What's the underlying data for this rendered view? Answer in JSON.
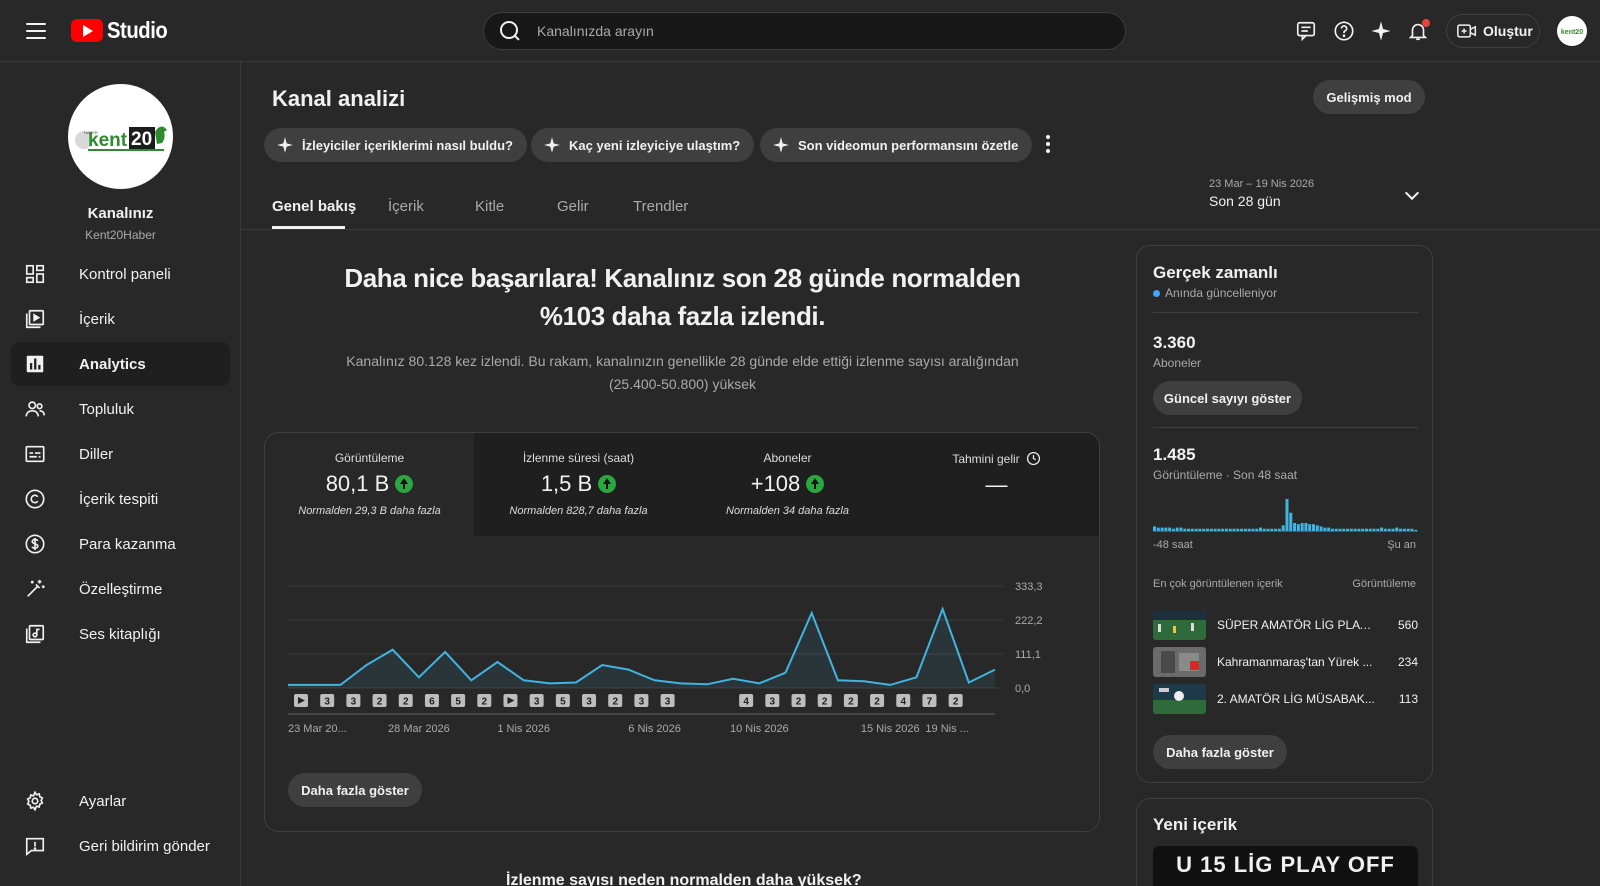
{
  "header": {
    "logo_text": "Studio",
    "search_placeholder": "Kanalınızda arayın",
    "create_label": "Oluştur"
  },
  "sidebar": {
    "channel_name": "Kanalınız",
    "channel_handle": "Kent20Haber",
    "channel_logo_text": "kent20",
    "items": [
      {
        "label": "Kontrol paneli",
        "icon": "dashboard-icon"
      },
      {
        "label": "İçerik",
        "icon": "content-icon"
      },
      {
        "label": "Analytics",
        "icon": "analytics-icon",
        "active": true
      },
      {
        "label": "Topluluk",
        "icon": "community-icon"
      },
      {
        "label": "Diller",
        "icon": "subtitles-icon"
      },
      {
        "label": "İçerik tespiti",
        "icon": "copyright-icon"
      },
      {
        "label": "Para kazanma",
        "icon": "dollar-icon"
      },
      {
        "label": "Özelleştirme",
        "icon": "magic-wand-icon"
      },
      {
        "label": "Ses kitaplığı",
        "icon": "audio-library-icon"
      }
    ],
    "bottom_items": [
      {
        "label": "Ayarlar",
        "icon": "gear-icon"
      },
      {
        "label": "Geri bildirim gönder",
        "icon": "feedback-icon"
      }
    ]
  },
  "main": {
    "title": "Kanal analizi",
    "advanced_mode": "Gelişmiş mod",
    "chips": [
      "İzleyiciler içeriklerimi nasıl buldu?",
      "Kaç yeni izleyiciye ulaştım?",
      "Son videomun performansını özetle"
    ],
    "tabs": [
      "Genel bakış",
      "İçerik",
      "Kitle",
      "Gelir",
      "Trendler"
    ],
    "date_range": {
      "dates": "23 Mar – 19 Nis 2026",
      "label": "Son 28 gün"
    },
    "headline": "Daha nice başarılara! Kanalınız son 28 günde normalden %103 daha fazla izlendi.",
    "subline": "Kanalınız 80.128 kez izlendi. Bu rakam, kanalınızın genellikle 28 günde elde ettiği izlenme sayısı aralığından (25.400-50.800) yüksek",
    "metrics": [
      {
        "label": "Görüntüleme",
        "value": "80,1 B",
        "note": "Normalden 29,3 B daha fazla",
        "up": true
      },
      {
        "label": "İzlenme süresi (saat)",
        "value": "1,5 B",
        "note": "Normalden 828,7 daha fazla",
        "up": true
      },
      {
        "label": "Aboneler",
        "value": "+108",
        "note": "Normalden 34 daha fazla",
        "up": true
      },
      {
        "label": "Tahmini gelir",
        "value": "—",
        "note": "",
        "up": false
      }
    ],
    "more_button": "Daha fazla göster",
    "next_section_title": "İzlenme sayısı neden normalden daha yüksek?"
  },
  "chart_data": {
    "type": "area",
    "yticks": [
      "333,3",
      "222,2",
      "111,1",
      "0,0"
    ],
    "ylim": [
      0,
      333.3
    ],
    "xtick_labels": [
      "23 Mar 20...",
      "28 Mar 2026",
      "1 Nis 2026",
      "6 Nis 2026",
      "10 Nis 2026",
      "15 Nis 2026",
      "19 Nis ..."
    ],
    "xtick_index": [
      0,
      5,
      9,
      14,
      18,
      23,
      26
    ],
    "values": [
      10,
      10,
      10,
      75,
      125,
      35,
      118,
      25,
      85,
      25,
      15,
      18,
      75,
      60,
      25,
      15,
      12,
      30,
      15,
      50,
      245,
      25,
      22,
      10,
      35,
      258,
      18,
      60
    ],
    "markers": [
      "play",
      "3",
      "3",
      "2",
      "2",
      "6",
      "5",
      "2",
      "play",
      "3",
      "5",
      "3",
      "2",
      "3",
      "3",
      "",
      "",
      "4",
      "3",
      "2",
      "2",
      "2",
      "2",
      "4",
      "7",
      "2",
      "",
      "3"
    ],
    "line_color": "#41b4e0"
  },
  "realtime": {
    "title": "Gerçek zamanlı",
    "live_label": "Anında güncelleniyor",
    "subscribers_value": "3.360",
    "subscribers_label": "Aboneler",
    "show_count_button": "Güncel sayıyı göster",
    "views_value": "1.485",
    "views_label": "Görüntüleme · Son 48 saat",
    "axis_left": "-48 saat",
    "axis_right": "Şu an",
    "top_content_header": "En çok görüntülenen içerik",
    "top_views_header": "Görüntüleme",
    "spark_values": [
      4,
      3,
      3,
      3,
      3,
      2,
      3,
      3,
      2,
      2,
      2,
      2,
      2,
      2,
      2,
      2,
      2,
      2,
      2,
      2,
      2,
      2,
      2,
      2,
      2,
      2,
      2,
      2,
      3,
      2,
      2,
      2,
      2,
      2,
      5,
      28,
      16,
      7,
      6,
      7,
      7,
      6,
      6,
      5,
      4,
      3,
      3,
      2,
      2,
      2,
      2,
      2,
      2,
      2,
      2,
      2,
      2,
      2,
      2,
      2,
      3,
      2,
      2,
      2,
      3,
      2,
      2,
      2,
      2,
      1
    ],
    "videos": [
      {
        "title": "SÜPER AMATÖR LİG PLAY ...",
        "views": "560"
      },
      {
        "title": "Kahramanmaraş'tan Yürek ...",
        "views": "234"
      },
      {
        "title": "2. AMATÖR LİG MÜSABAK...",
        "views": "113"
      }
    ],
    "more_button": "Daha fazla göster"
  },
  "new_content": {
    "title": "Yeni içerik",
    "thumb_text": "U 15 LİG PLAY OFF"
  }
}
